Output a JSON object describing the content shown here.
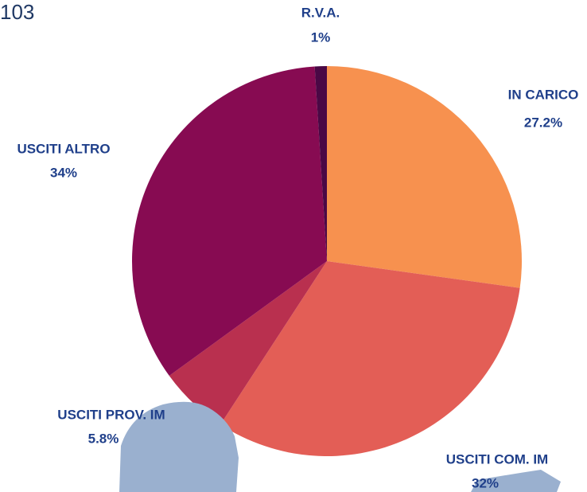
{
  "page_number": "103",
  "chart_data": {
    "type": "pie",
    "categories": [
      "IN CARICO",
      "USCITI COM. IM",
      "USCITI PROV. IM",
      "USCITI ALTRO",
      "R.V.A."
    ],
    "values": [
      27.2,
      32,
      5.8,
      34,
      1
    ],
    "value_labels": [
      "27.2%",
      "32%",
      "5.8%",
      "34%",
      "1%"
    ],
    "colors": [
      "#f7914f",
      "#e35e56",
      "#b9304f",
      "#870b52",
      "#4a0845"
    ]
  }
}
